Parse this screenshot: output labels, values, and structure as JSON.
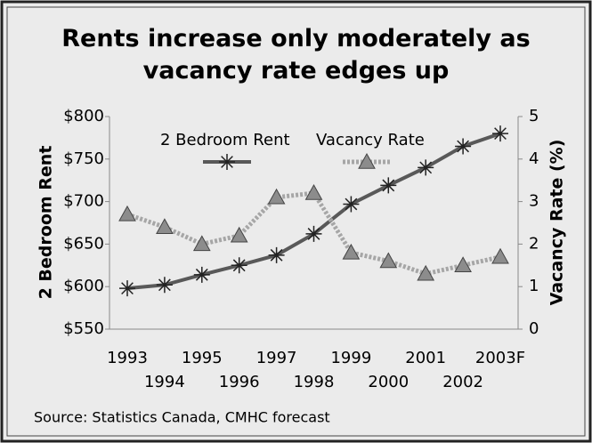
{
  "chart_data": {
    "type": "line",
    "title": "Rents increase only moderately as vacancy rate edges up",
    "source": "Source: Statistics Canada, CMHC forecast",
    "categories": [
      "1993",
      "1994",
      "1995",
      "1996",
      "1997",
      "1998",
      "1999",
      "2000",
      "2001",
      "2002",
      "2003F"
    ],
    "y_label": "2 Bedroom Rent",
    "y2_label": "Vacancy Rate (%)",
    "series": [
      {
        "name": "2 Bedroom Rent",
        "color": "#595959",
        "marker": "star",
        "values": [
          598,
          602,
          614,
          625,
          637,
          662,
          697,
          719,
          740,
          765,
          780
        ]
      },
      {
        "name": "Vacancy Rate",
        "color": "#a6a6a6",
        "marker": "triangle",
        "axis": "y2",
        "values": [
          2.7,
          2.4,
          2.0,
          2.2,
          3.1,
          3.2,
          1.8,
          1.6,
          1.3,
          1.5,
          1.7
        ]
      }
    ],
    "ylim": [
      550,
      800
    ],
    "yticks": [
      {
        "value": 550,
        "label": "$550"
      },
      {
        "value": 600,
        "label": "$600"
      },
      {
        "value": 650,
        "label": "$650"
      },
      {
        "value": 700,
        "label": "$700"
      },
      {
        "value": 750,
        "label": "$750"
      },
      {
        "value": 800,
        "label": "$800"
      }
    ],
    "y2lim": [
      0,
      5
    ],
    "y2ticks": [
      0,
      1,
      2,
      3,
      4,
      5
    ],
    "legend": "top",
    "grid": false
  }
}
